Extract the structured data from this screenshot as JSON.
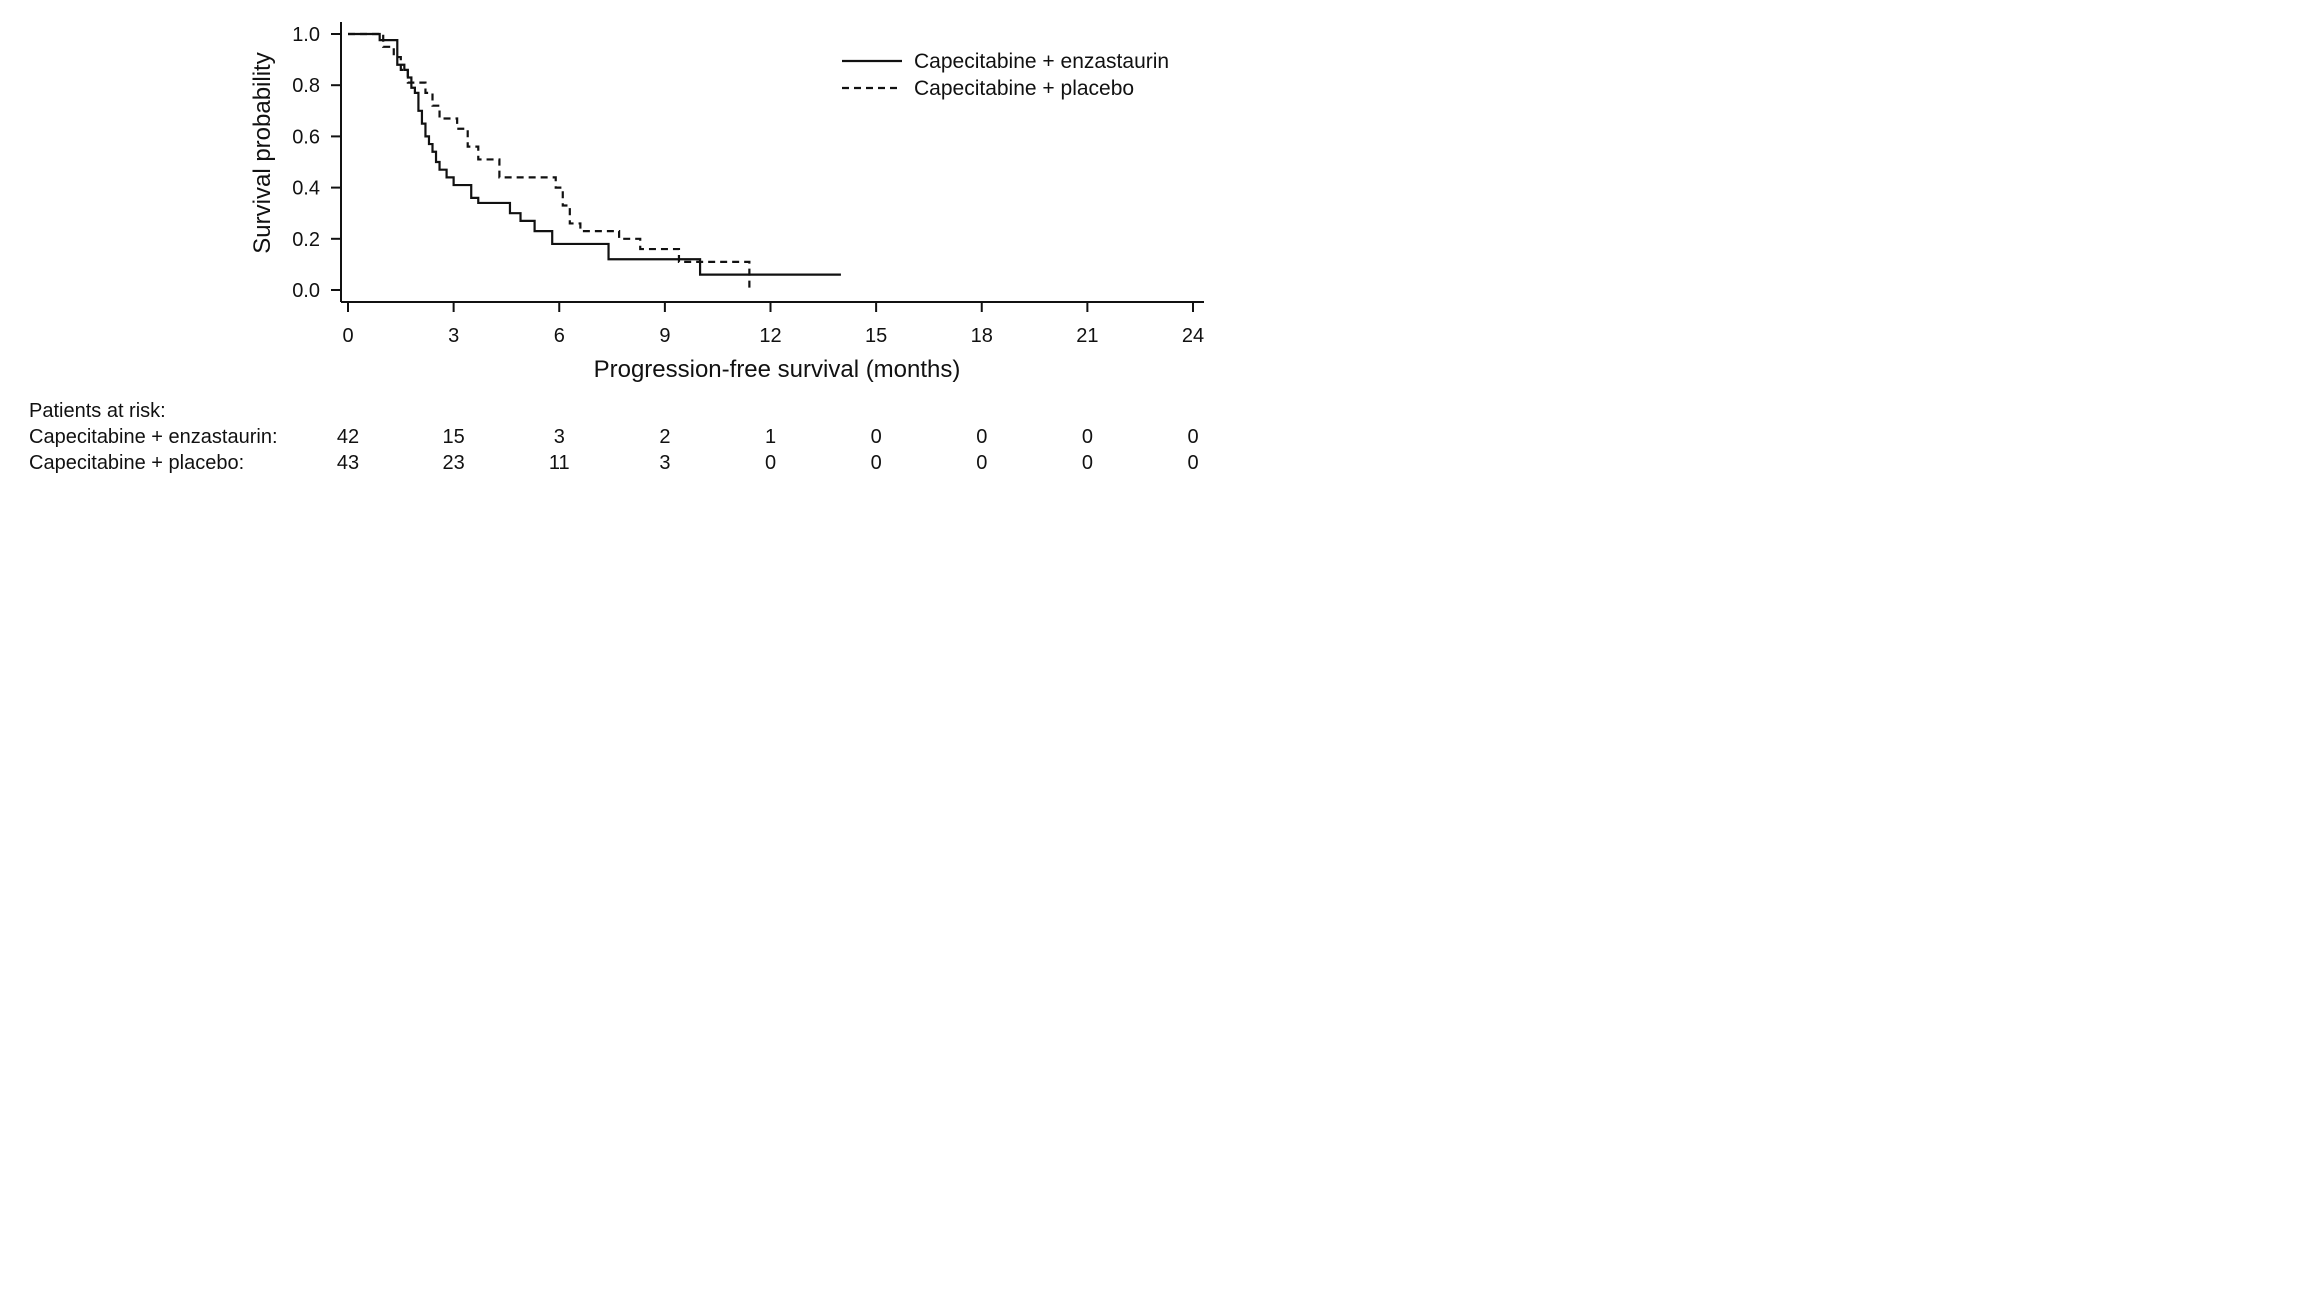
{
  "chart_data": {
    "type": "line",
    "subtype": "kaplan-meier step",
    "xlabel": "Progression-free survival (months)",
    "ylabel": "Survival probability",
    "xlim": [
      0,
      24
    ],
    "ylim": [
      0,
      1
    ],
    "x_ticks": [
      "0",
      "3",
      "6",
      "9",
      "12",
      "15",
      "18",
      "21",
      "24"
    ],
    "y_ticks": [
      "0.0",
      "0.2",
      "0.4",
      "0.6",
      "0.8",
      "1.0"
    ],
    "grid": false,
    "legend_position": "top-right",
    "series": [
      {
        "name": "Capecitabine + enzastaurin",
        "line_style": "solid",
        "color": "#111111",
        "x": [
          0,
          0.9,
          1.4,
          1.6,
          1.7,
          1.8,
          1.9,
          2.0,
          2.1,
          2.2,
          2.3,
          2.4,
          2.5,
          2.6,
          2.8,
          3.0,
          3.5,
          3.7,
          4.6,
          4.9,
          5.3,
          5.8,
          7.4,
          9.0,
          10.0,
          14.0
        ],
        "y": [
          1.0,
          0.976,
          0.88,
          0.86,
          0.83,
          0.79,
          0.77,
          0.7,
          0.65,
          0.6,
          0.57,
          0.54,
          0.5,
          0.47,
          0.44,
          0.41,
          0.36,
          0.34,
          0.3,
          0.27,
          0.23,
          0.18,
          0.12,
          0.12,
          0.06,
          0.06
        ]
      },
      {
        "name": "Capecitabine + placebo",
        "line_style": "dashed",
        "color": "#111111",
        "x": [
          0,
          1.0,
          1.3,
          1.5,
          1.7,
          2.2,
          2.4,
          2.6,
          3.1,
          3.4,
          3.7,
          4.3,
          5.7,
          5.9,
          6.1,
          6.3,
          6.6,
          7.7,
          8.3,
          9.4,
          10.2,
          11.4
        ],
        "y": [
          1.0,
          0.95,
          0.91,
          0.86,
          0.81,
          0.77,
          0.72,
          0.67,
          0.63,
          0.56,
          0.51,
          0.44,
          0.44,
          0.4,
          0.33,
          0.26,
          0.23,
          0.2,
          0.16,
          0.11,
          0.11,
          0.0
        ]
      }
    ]
  },
  "risk_table": {
    "title": "Patients at risk:",
    "times": [
      "0",
      "3",
      "6",
      "9",
      "12",
      "15",
      "18",
      "21",
      "24"
    ],
    "rows": [
      {
        "label": "Capecitabine + enzastaurin:",
        "counts": [
          "42",
          "15",
          "3",
          "2",
          "1",
          "0",
          "0",
          "0",
          "0"
        ]
      },
      {
        "label": "Capecitabine + placebo:",
        "counts": [
          "43",
          "23",
          "11",
          "3",
          "0",
          "0",
          "0",
          "0",
          "0"
        ]
      }
    ]
  }
}
